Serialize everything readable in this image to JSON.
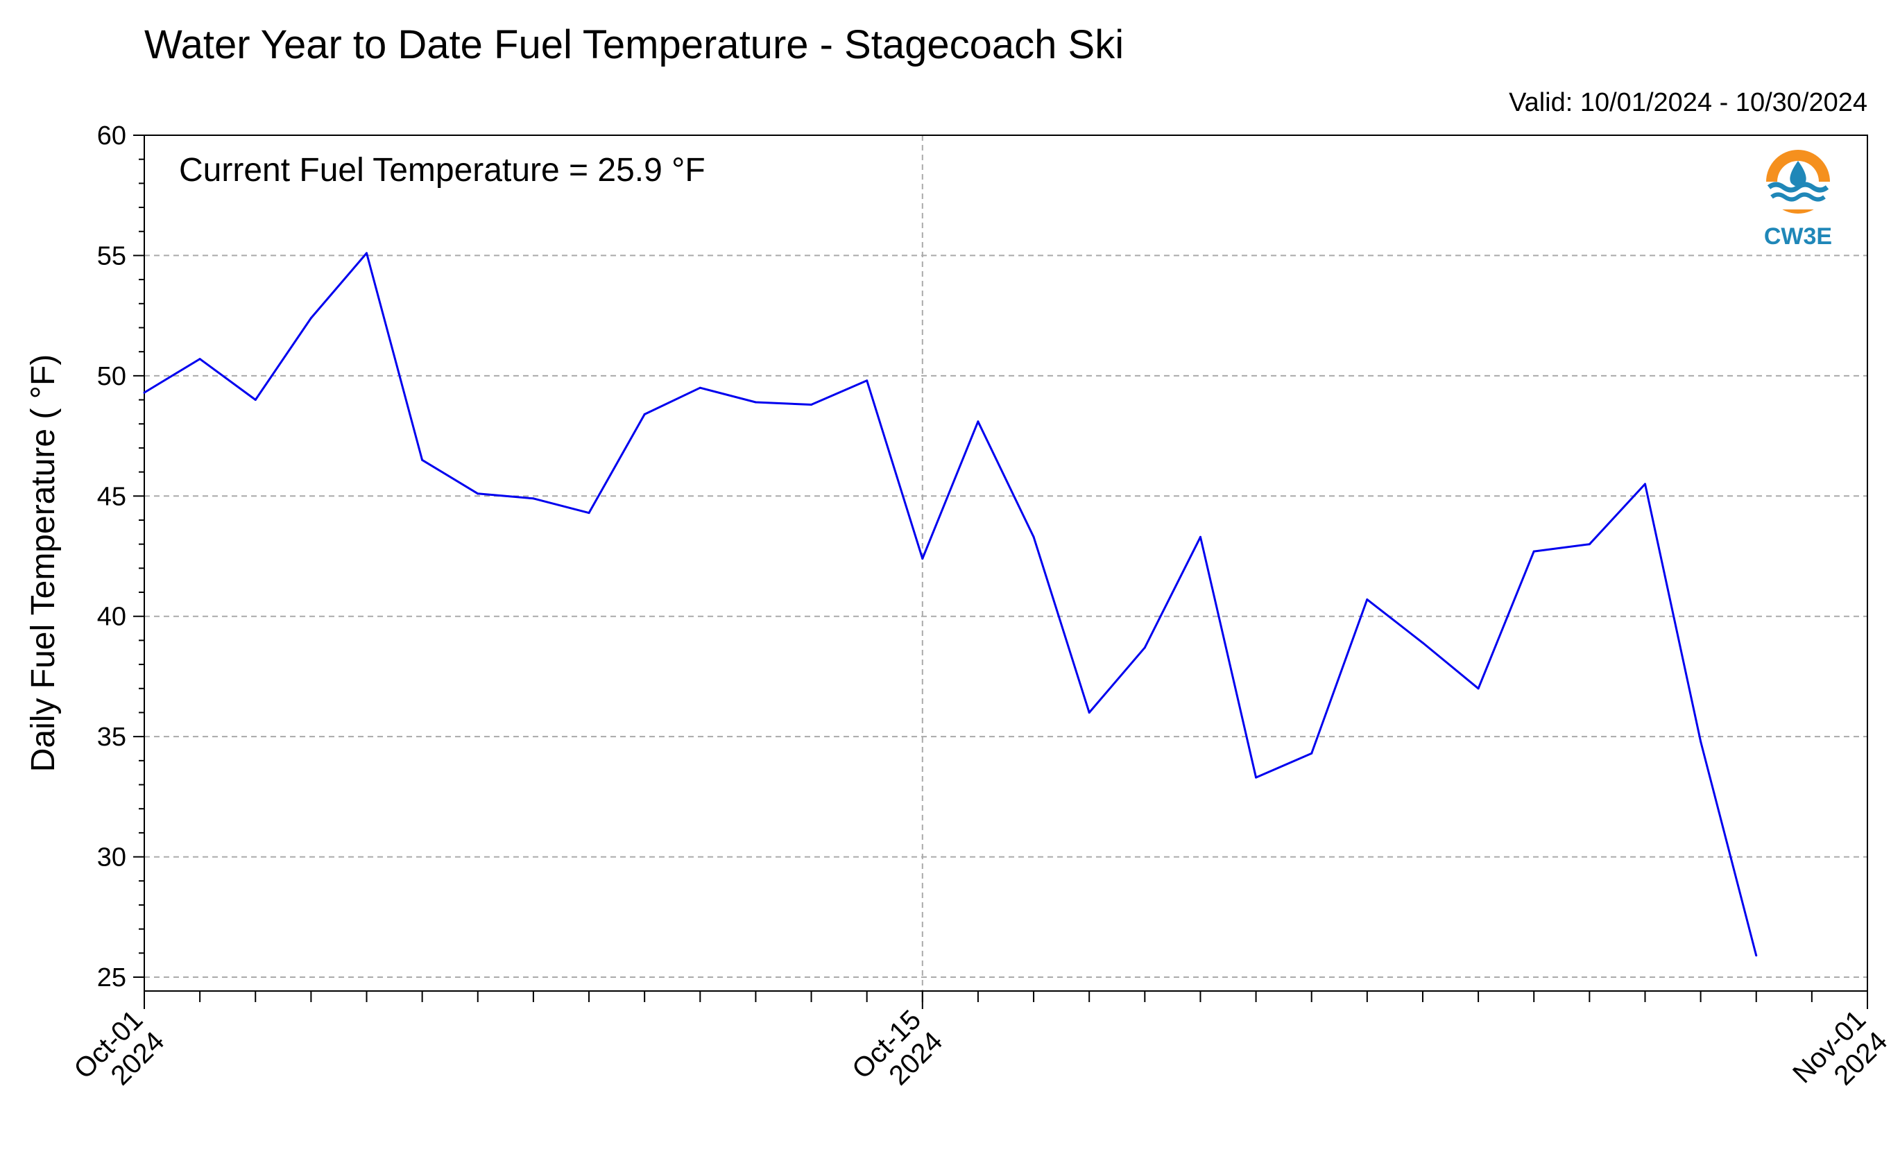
{
  "chart_data": {
    "type": "line",
    "title": "Water Year to Date Fuel Temperature - Stagecoach Ski",
    "valid_text": "Valid: 10/01/2024 - 10/30/2024",
    "annotation": "Current Fuel Temperature = 25.9  °F",
    "ylabel": "Daily Fuel Temperature ( °F)",
    "ylim": [
      25,
      60
    ],
    "yticks": [
      "25",
      "30",
      "35",
      "40",
      "45",
      "50",
      "55",
      "60"
    ],
    "xlim": [
      "2024-10-01",
      "2024-11-01"
    ],
    "xticks": [
      {
        "date": "2024-10-01",
        "line1": "Oct-01",
        "line2": "2024"
      },
      {
        "date": "2024-10-15",
        "line1": "Oct-15",
        "line2": "2024"
      },
      {
        "date": "2024-11-01",
        "line1": "Nov-01",
        "line2": "2024"
      }
    ],
    "grid": true,
    "series": [
      {
        "color": "#0000ee",
        "x": [
          "2024-10-01",
          "2024-10-02",
          "2024-10-03",
          "2024-10-04",
          "2024-10-05",
          "2024-10-06",
          "2024-10-07",
          "2024-10-08",
          "2024-10-09",
          "2024-10-10",
          "2024-10-11",
          "2024-10-12",
          "2024-10-13",
          "2024-10-14",
          "2024-10-15",
          "2024-10-16",
          "2024-10-17",
          "2024-10-18",
          "2024-10-19",
          "2024-10-20",
          "2024-10-21",
          "2024-10-22",
          "2024-10-23",
          "2024-10-24",
          "2024-10-25",
          "2024-10-26",
          "2024-10-27",
          "2024-10-28",
          "2024-10-29",
          "2024-10-30"
        ],
        "values": [
          49.3,
          50.7,
          49.0,
          52.4,
          55.1,
          46.5,
          45.1,
          44.9,
          44.3,
          48.4,
          49.5,
          48.9,
          48.8,
          49.8,
          42.4,
          48.1,
          43.3,
          36.0,
          38.7,
          43.3,
          33.3,
          34.3,
          40.7,
          38.9,
          37.0,
          42.7,
          43.0,
          45.5,
          34.8,
          25.9
        ]
      }
    ]
  },
  "logo": {
    "text": "CW3E",
    "ring_color": "#f5901e",
    "wave_color": "#1f87b8"
  }
}
